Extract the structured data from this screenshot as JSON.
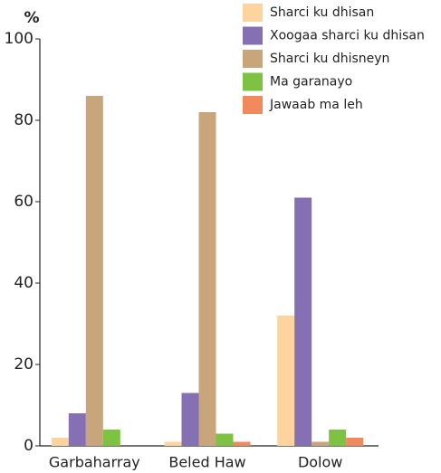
{
  "chart_data": {
    "type": "bar",
    "y_label": "%",
    "categories": [
      "Garbaharray",
      "Beled Haw",
      "Dolow"
    ],
    "series": [
      {
        "name": "Sharci ku dhisan",
        "color": "#fdd49e",
        "values": [
          2,
          1,
          32
        ]
      },
      {
        "name": "Xoogaa sharci ku dhisan",
        "color": "#8470b2",
        "values": [
          8,
          13,
          61
        ]
      },
      {
        "name": "Sharci ku dhisneyn",
        "color": "#c8a57b",
        "values": [
          86,
          82,
          1
        ]
      },
      {
        "name": "Ma garanayo",
        "color": "#7dc242",
        "values": [
          4,
          3,
          4
        ]
      },
      {
        "name": "Jawaab ma leh",
        "color": "#f08a5d",
        "values": [
          0,
          1,
          2
        ]
      }
    ],
    "ylim": [
      0,
      100
    ],
    "yticks": [
      0,
      20,
      40,
      60,
      80,
      100
    ],
    "legend": "upper right"
  }
}
